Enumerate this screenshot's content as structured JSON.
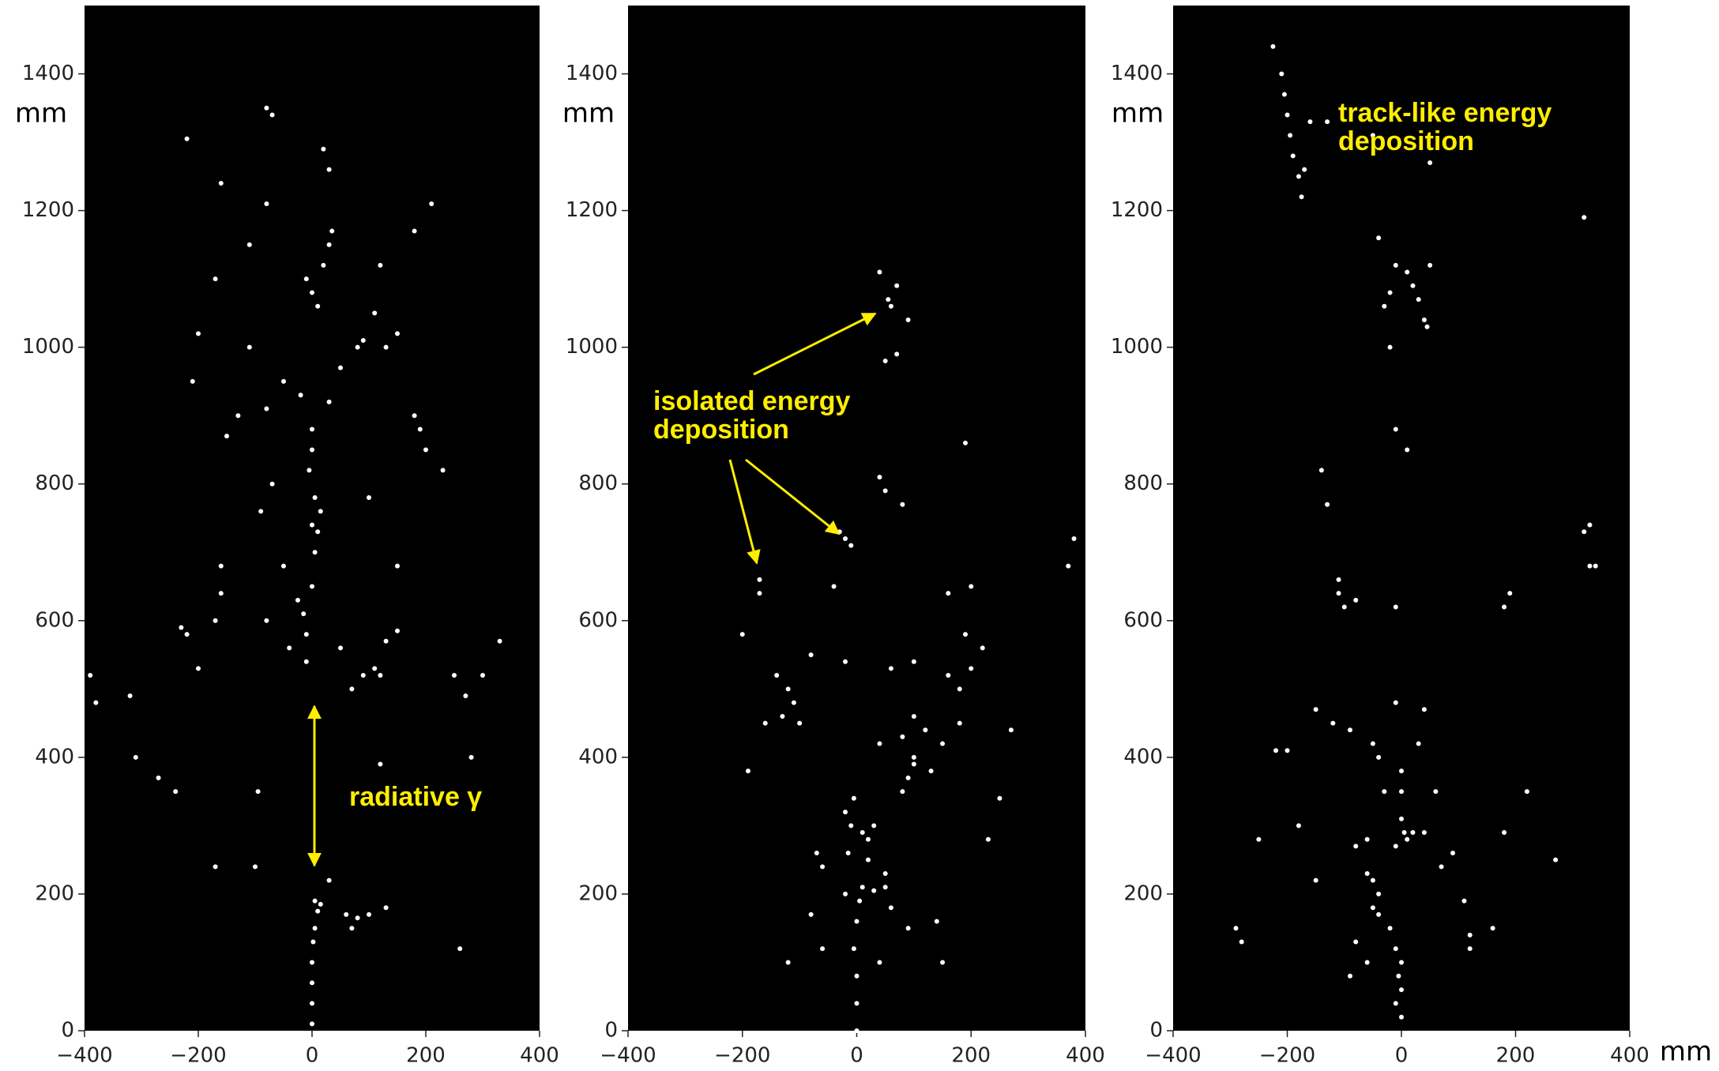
{
  "chart_data": [
    {
      "type": "scatter",
      "ylabel": "mm",
      "color": "#ffffff",
      "background": "#000000",
      "annotation": [
        "radiative γ"
      ],
      "xlim": [
        -400,
        400
      ],
      "ylim": [
        0,
        1500
      ],
      "xticks": [
        {
          "value": -400,
          "label": "−400"
        },
        {
          "value": -200,
          "label": "−200"
        },
        0,
        200,
        400
      ],
      "yticks": [
        0,
        200,
        400,
        600,
        800,
        1000,
        1200,
        1400
      ],
      "x": [
        0,
        0,
        0,
        0,
        2,
        5,
        10,
        5,
        15,
        60,
        70,
        80,
        100,
        130,
        260,
        30,
        -10,
        -10,
        -15,
        -25,
        0,
        5,
        0,
        5,
        -5,
        0,
        0,
        10,
        15,
        70,
        90,
        110,
        120,
        130,
        150,
        50,
        -40,
        -230,
        -220,
        -160,
        -170,
        -390,
        -380,
        -320,
        -310,
        -270,
        -240,
        -170,
        -100,
        -95,
        -200,
        -80,
        -210,
        -150,
        -130,
        -80,
        -50,
        -20,
        30,
        50,
        90,
        110,
        150,
        130,
        180,
        190,
        200,
        230,
        -70,
        -90,
        -110,
        -200,
        -170,
        -110,
        -10,
        0,
        10,
        30,
        35,
        20,
        -80,
        -70,
        -220,
        -160,
        -80,
        20,
        30,
        210,
        180,
        120,
        80,
        100,
        150,
        -50,
        -160,
        330,
        300,
        250,
        270,
        280,
        120
      ],
      "y": [
        10,
        40,
        70,
        100,
        130,
        150,
        175,
        190,
        185,
        170,
        150,
        165,
        170,
        180,
        120,
        220,
        540,
        580,
        610,
        630,
        650,
        700,
        740,
        780,
        820,
        850,
        880,
        730,
        760,
        500,
        520,
        530,
        520,
        570,
        585,
        560,
        560,
        590,
        580,
        640,
        600,
        520,
        480,
        490,
        400,
        370,
        350,
        240,
        240,
        350,
        530,
        600,
        950,
        870,
        900,
        910,
        950,
        930,
        920,
        970,
        1010,
        1050,
        1020,
        1000,
        900,
        880,
        850,
        820,
        800,
        760,
        1000,
        1020,
        1100,
        1150,
        1100,
        1080,
        1060,
        1150,
        1170,
        1120,
        1350,
        1340,
        1305,
        1240,
        1210,
        1290,
        1260,
        1210,
        1170,
        1120,
        1000,
        780,
        680,
        680,
        680,
        570,
        520,
        520,
        490,
        400,
        390
      ]
    },
    {
      "type": "scatter",
      "ylabel": "mm",
      "color": "#ffffff",
      "background": "#000000",
      "annotation": [
        "isolated energy",
        "deposition"
      ],
      "xlim": [
        -400,
        400
      ],
      "ylim": [
        0,
        1500
      ],
      "xticks": [
        {
          "value": -400,
          "label": "−400"
        },
        {
          "value": -200,
          "label": "−200"
        },
        0,
        200,
        400
      ],
      "yticks": [
        0,
        200,
        400,
        600,
        800,
        1000,
        1200,
        1400
      ],
      "x": [
        0,
        0,
        0,
        -5,
        0,
        5,
        10,
        30,
        50,
        -20,
        -15,
        -20,
        -10,
        10,
        20,
        30,
        20,
        -5,
        80,
        90,
        100,
        -60,
        -80,
        -120,
        -60,
        -70,
        50,
        60,
        90,
        140,
        150,
        40,
        -100,
        -110,
        -120,
        -140,
        -130,
        40,
        80,
        100,
        120,
        150,
        160,
        180,
        200,
        190,
        220,
        200,
        160,
        270,
        250,
        230,
        -160,
        -190,
        -40,
        -80,
        -20,
        60,
        100,
        180,
        -200,
        -170,
        -170,
        -30,
        -20,
        -10,
        40,
        80,
        50,
        190,
        380,
        370,
        40,
        60,
        55,
        70,
        90,
        70,
        50,
        100,
        130
      ],
      "y": [
        0,
        40,
        80,
        120,
        160,
        190,
        210,
        205,
        210,
        200,
        260,
        320,
        300,
        290,
        280,
        300,
        250,
        340,
        350,
        370,
        390,
        120,
        170,
        100,
        240,
        260,
        230,
        180,
        150,
        160,
        100,
        100,
        450,
        480,
        500,
        520,
        460,
        420,
        430,
        460,
        440,
        420,
        520,
        500,
        530,
        580,
        560,
        650,
        640,
        440,
        340,
        280,
        450,
        380,
        650,
        550,
        540,
        530,
        540,
        450,
        580,
        640,
        660,
        730,
        720,
        710,
        810,
        770,
        790,
        860,
        720,
        680,
        1110,
        1060,
        1070,
        1090,
        1040,
        990,
        980,
        400,
        380
      ]
    },
    {
      "type": "scatter",
      "ylabel": "mm",
      "xlabel": "mm",
      "color": "#ffffff",
      "background": "#000000",
      "annotation": [
        "track-like energy",
        "deposition"
      ],
      "xlim": [
        -400,
        400
      ],
      "ylim": [
        0,
        1500
      ],
      "xticks": [
        {
          "value": -400,
          "label": "−400"
        },
        {
          "value": -200,
          "label": "−200"
        },
        0,
        200,
        400
      ],
      "yticks": [
        0,
        200,
        400,
        600,
        800,
        1000,
        1200,
        1400
      ],
      "x": [
        -210,
        -205,
        -200,
        -195,
        -190,
        -180,
        -175,
        -225,
        -170,
        -160,
        -130,
        -50,
        50,
        320,
        -40,
        -10,
        10,
        20,
        30,
        40,
        45,
        -20,
        -30,
        50,
        -20,
        -10,
        10,
        -140,
        -130,
        -110,
        -110,
        -100,
        -80,
        -10,
        180,
        190,
        330,
        320,
        330,
        340,
        -200,
        -220,
        -150,
        -120,
        -90,
        -50,
        -40,
        -30,
        0,
        0,
        0,
        5,
        10,
        20,
        40,
        -10,
        -60,
        -80,
        -60,
        -50,
        -40,
        -50,
        -40,
        -20,
        -10,
        0,
        -5,
        0,
        -10,
        0,
        -60,
        -90,
        -80,
        70,
        90,
        110,
        120,
        160,
        180,
        220,
        270,
        -290,
        -280,
        -150,
        -180,
        -250,
        30,
        60,
        -10,
        40,
        120
      ],
      "y": [
        1400,
        1370,
        1340,
        1310,
        1280,
        1250,
        1220,
        1440,
        1260,
        1330,
        1330,
        1310,
        1270,
        1190,
        1160,
        1120,
        1110,
        1090,
        1070,
        1040,
        1030,
        1080,
        1060,
        1120,
        1000,
        880,
        850,
        820,
        770,
        660,
        640,
        620,
        630,
        620,
        620,
        640,
        740,
        730,
        680,
        680,
        410,
        410,
        470,
        450,
        440,
        420,
        400,
        350,
        380,
        350,
        310,
        290,
        280,
        290,
        290,
        270,
        280,
        270,
        230,
        220,
        200,
        180,
        170,
        150,
        120,
        100,
        80,
        60,
        40,
        20,
        100,
        80,
        130,
        240,
        260,
        190,
        140,
        150,
        290,
        350,
        250,
        150,
        130,
        220,
        300,
        280,
        420,
        350,
        480,
        470,
        120
      ]
    }
  ]
}
